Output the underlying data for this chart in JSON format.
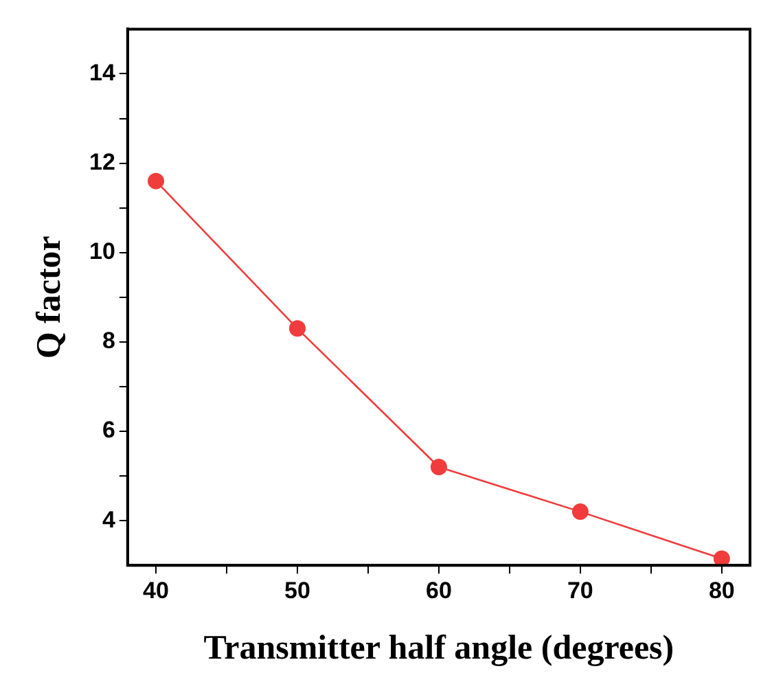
{
  "chart_data": {
    "type": "line",
    "xlabel": "Transmitter half angle (degrees)",
    "ylabel": "Q factor",
    "x": [
      40,
      50,
      60,
      70,
      80
    ],
    "series": [
      {
        "color": "#f03c3c",
        "values": [
          11.6,
          8.3,
          5.2,
          4.2,
          3.15
        ]
      }
    ],
    "xlim": [
      38,
      82
    ],
    "xticks": [
      40,
      {
        "value": 45,
        "label": null
      },
      50,
      {
        "value": 55,
        "label": null
      },
      60,
      {
        "value": 65,
        "label": null
      },
      70,
      {
        "value": 75,
        "label": null
      },
      80
    ],
    "ylim": [
      3,
      15
    ],
    "yticks": [
      4,
      {
        "value": 5,
        "label": null
      },
      6,
      {
        "value": 7,
        "label": null
      },
      8,
      {
        "value": 9,
        "label": null
      },
      10,
      {
        "value": 11,
        "label": null
      },
      12,
      {
        "value": 13,
        "label": null
      },
      14
    ],
    "grid": false,
    "legend": false,
    "marker": "circle",
    "line_style": "solid"
  }
}
